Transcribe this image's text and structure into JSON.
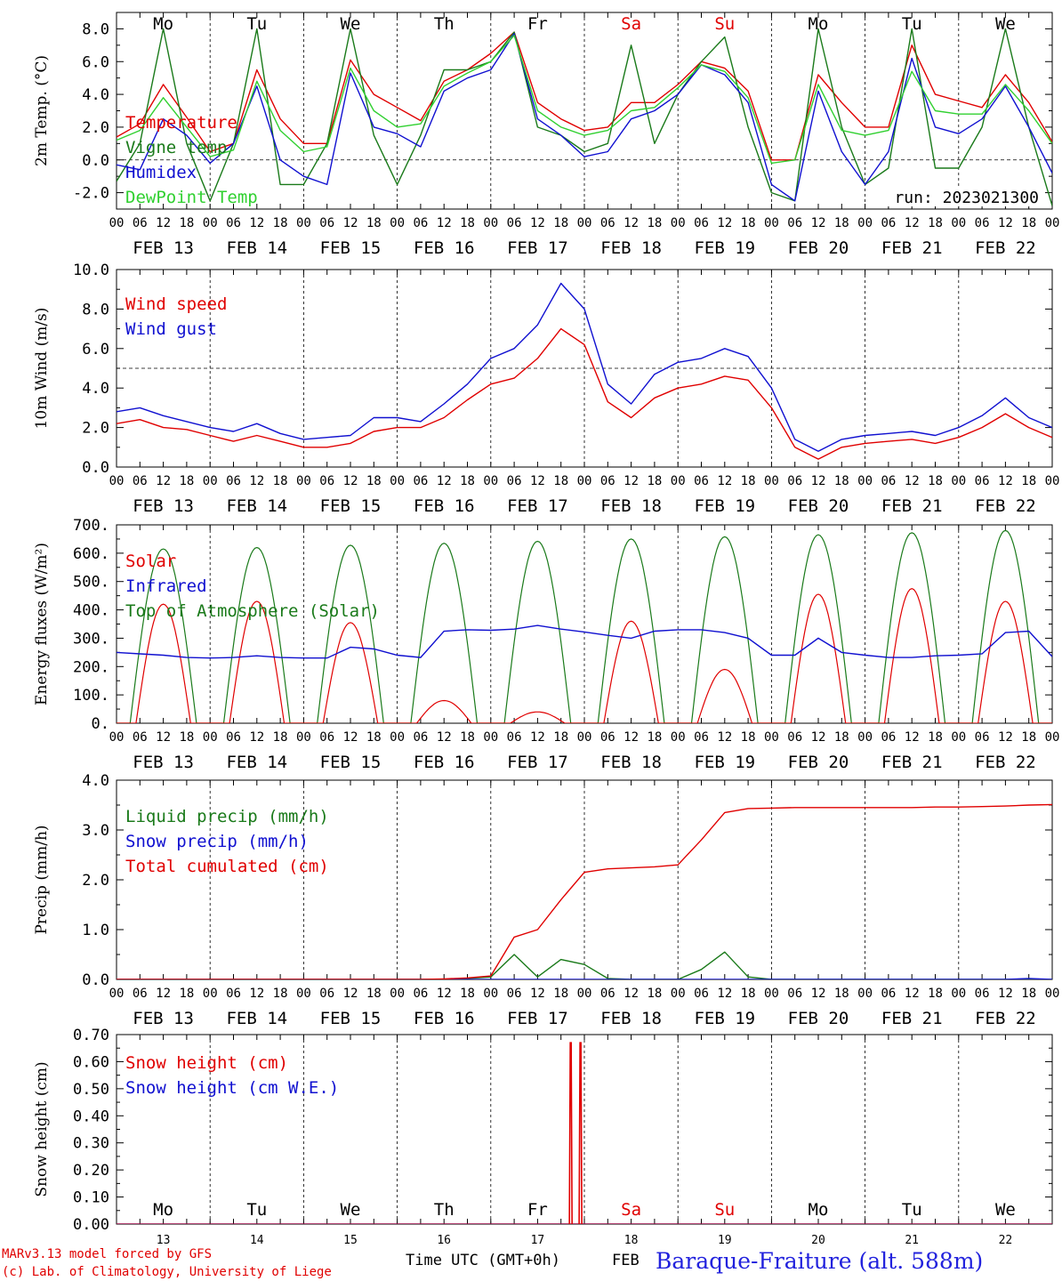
{
  "footer": {
    "model_line": "MARv3.13 model forced by GFS",
    "copyright_line": "(c) Lab. of Climatology, University of Liege",
    "time_label": "Time UTC (GMT+0h)",
    "month_label": "FEB",
    "station_title": "Baraque-Fraiture (alt. 588m)"
  },
  "colors": {
    "red": "#e00000",
    "green": "#1a7a1a",
    "blue": "#1010d0",
    "lightgreen": "#30d030",
    "weekend": "#e00000",
    "text": "#000000",
    "title": "#2222dd"
  },
  "chart_data": [
    {
      "type": "line",
      "ylabel": "2m Temp. (°C)",
      "ylim": [
        -3,
        9
      ],
      "yticks": [
        "8.0",
        "6.0",
        "4.0",
        "2.0",
        "0.0",
        "-2.0"
      ],
      "ytick_values": [
        8,
        6,
        4,
        2,
        0,
        -2
      ],
      "reference_line": 0,
      "annotation": "run: 2023021300",
      "day_labels": [
        "Mo",
        "Tu",
        "We",
        "Th",
        "Fr",
        "Sa",
        "Su",
        "Mo",
        "Tu",
        "We"
      ],
      "weekend_days": [
        5,
        6
      ],
      "x_hours": [
        0,
        6,
        12,
        18,
        24,
        30,
        36,
        42,
        48,
        54,
        60,
        66,
        72,
        78,
        84,
        90,
        96,
        102,
        108,
        114,
        120,
        126,
        132,
        138,
        144,
        150,
        156,
        162,
        168,
        174,
        180,
        186,
        192,
        198,
        204,
        210,
        216,
        222,
        228,
        234,
        240
      ],
      "series": [
        {
          "name": "Temperature",
          "color": "#e00000",
          "values": [
            1.4,
            2.2,
            4.6,
            2.6,
            0.5,
            1.0,
            5.5,
            2.5,
            1.0,
            1.0,
            6.1,
            4.0,
            3.2,
            2.4,
            4.8,
            5.5,
            6.5,
            7.8,
            3.5,
            2.5,
            1.8,
            2.0,
            3.5,
            3.5,
            4.6,
            6.0,
            5.6,
            4.2,
            0.0,
            0.0,
            5.2,
            3.5,
            2.0,
            2.0,
            7.0,
            4.0,
            3.6,
            3.2,
            5.2,
            3.5,
            1.1
          ]
        },
        {
          "name": "Vigne temp",
          "color": "#1a7a1a",
          "values": [
            -1.3,
            1.0,
            8.0,
            1.0,
            -2.5,
            1.0,
            8.0,
            -1.5,
            -1.5,
            1.0,
            8.0,
            1.5,
            -1.5,
            1.5,
            5.5,
            5.5,
            6.0,
            7.8,
            2.0,
            1.5,
            0.5,
            1.0,
            7.0,
            1.0,
            4.0,
            6.0,
            7.5,
            2.0,
            -2.0,
            -2.5,
            8.0,
            2.0,
            -1.5,
            -0.5,
            8.0,
            -0.5,
            -0.5,
            2.0,
            8.0,
            2.0,
            -2.8
          ]
        },
        {
          "name": "Humidex",
          "color": "#1010d0",
          "values": [
            -0.3,
            -0.6,
            2.5,
            1.5,
            -0.2,
            1.0,
            4.5,
            0.0,
            -1.0,
            -1.5,
            5.3,
            2.0,
            1.6,
            0.8,
            4.2,
            5.0,
            5.5,
            7.7,
            2.5,
            1.5,
            0.2,
            0.5,
            2.5,
            3.0,
            4.0,
            5.8,
            5.2,
            3.5,
            -1.5,
            -2.5,
            4.2,
            0.5,
            -1.5,
            0.5,
            6.2,
            2.0,
            1.6,
            2.5,
            4.5,
            2.0,
            -0.8
          ]
        },
        {
          "name": "DewPoint Temp",
          "color": "#30d030",
          "values": [
            1.2,
            1.8,
            3.8,
            2.0,
            0.2,
            0.6,
            4.8,
            1.8,
            0.5,
            0.8,
            5.6,
            3.0,
            2.0,
            2.2,
            4.5,
            5.3,
            6.0,
            7.6,
            3.0,
            2.0,
            1.5,
            1.8,
            3.0,
            3.2,
            4.4,
            5.8,
            5.4,
            3.8,
            -0.2,
            0.0,
            4.6,
            1.8,
            1.5,
            1.8,
            5.4,
            3.0,
            2.8,
            2.8,
            4.6,
            3.0,
            1.0
          ]
        }
      ]
    },
    {
      "type": "line",
      "ylabel": "10m Wind (m/s)",
      "ylim": [
        0,
        10
      ],
      "yticks": [
        "10.0",
        "8.0",
        "6.0",
        "4.0",
        "2.0",
        "0.0"
      ],
      "ytick_values": [
        10,
        8,
        6,
        4,
        2,
        0
      ],
      "reference_line": 5,
      "x_hours": [
        0,
        6,
        12,
        18,
        24,
        30,
        36,
        42,
        48,
        54,
        60,
        66,
        72,
        78,
        84,
        90,
        96,
        102,
        108,
        114,
        120,
        126,
        132,
        138,
        144,
        150,
        156,
        162,
        168,
        174,
        180,
        186,
        192,
        198,
        204,
        210,
        216,
        222,
        228,
        234,
        240
      ],
      "series": [
        {
          "name": "Wind speed",
          "color": "#e00000",
          "values": [
            2.2,
            2.4,
            2.0,
            1.9,
            1.6,
            1.3,
            1.6,
            1.3,
            1.0,
            1.0,
            1.2,
            1.8,
            2.0,
            2.0,
            2.5,
            3.4,
            4.2,
            4.5,
            5.5,
            7.0,
            6.2,
            3.3,
            2.5,
            3.5,
            4.0,
            4.2,
            4.6,
            4.4,
            3.0,
            1.0,
            0.4,
            1.0,
            1.2,
            1.3,
            1.4,
            1.2,
            1.5,
            2.0,
            2.7,
            2.0,
            1.5
          ]
        },
        {
          "name": "Wind gust",
          "color": "#1010d0",
          "values": [
            2.8,
            3.0,
            2.6,
            2.3,
            2.0,
            1.8,
            2.2,
            1.7,
            1.4,
            1.5,
            1.6,
            2.5,
            2.5,
            2.3,
            3.2,
            4.2,
            5.5,
            6.0,
            7.2,
            9.3,
            8.0,
            4.2,
            3.2,
            4.7,
            5.3,
            5.5,
            6.0,
            5.6,
            4.0,
            1.4,
            0.8,
            1.4,
            1.6,
            1.7,
            1.8,
            1.6,
            2.0,
            2.6,
            3.5,
            2.5,
            2.0
          ]
        }
      ]
    },
    {
      "type": "line",
      "ylabel": "Energy fluxes (W/m²)",
      "ylim": [
        0,
        700
      ],
      "yticks": [
        "700.",
        "600.",
        "500.",
        "400.",
        "300.",
        "200.",
        "100.",
        "0."
      ],
      "ytick_values": [
        700,
        600,
        500,
        400,
        300,
        200,
        100,
        0
      ],
      "x_hours": [
        0,
        6,
        12,
        18,
        24,
        30,
        36,
        42,
        48,
        54,
        60,
        66,
        72,
        78,
        84,
        90,
        96,
        102,
        108,
        114,
        120,
        126,
        132,
        138,
        144,
        150,
        156,
        162,
        168,
        174,
        180,
        186,
        192,
        198,
        204,
        210,
        216,
        222,
        228,
        234,
        240
      ],
      "series": [
        {
          "name": "Solar",
          "color": "#e00000",
          "day_peaks": [
            420,
            430,
            355,
            80,
            40,
            360,
            190,
            455,
            475,
            430
          ]
        },
        {
          "name": "Infrared",
          "color": "#1010d0",
          "values": [
            250,
            245,
            240,
            232,
            230,
            232,
            238,
            232,
            230,
            230,
            268,
            262,
            240,
            232,
            325,
            330,
            328,
            332,
            345,
            332,
            322,
            310,
            300,
            325,
            330,
            330,
            320,
            300,
            240,
            240,
            300,
            250,
            240,
            232,
            232,
            238,
            240,
            245,
            320,
            325,
            235
          ]
        },
        {
          "name": "Top of Atmosphere (Solar)",
          "color": "#1a7a1a",
          "day_peaks": [
            615,
            620,
            628,
            635,
            642,
            650,
            658,
            665,
            672,
            680
          ]
        }
      ]
    },
    {
      "type": "line",
      "ylabel": "Precip (mm/h)",
      "ylim": [
        0,
        4
      ],
      "yticks": [
        "4.0",
        "3.0",
        "2.0",
        "1.0",
        "0.0"
      ],
      "ytick_values": [
        4,
        3,
        2,
        1,
        0
      ],
      "x_hours": [
        0,
        6,
        12,
        18,
        24,
        30,
        36,
        42,
        48,
        54,
        60,
        66,
        72,
        78,
        84,
        90,
        96,
        102,
        108,
        114,
        120,
        126,
        132,
        138,
        144,
        150,
        156,
        162,
        168,
        174,
        180,
        186,
        192,
        198,
        204,
        210,
        216,
        222,
        228,
        234,
        240
      ],
      "series": [
        {
          "name": "Liquid precip (mm/h)",
          "color": "#1a7a1a",
          "values": [
            0,
            0,
            0,
            0,
            0,
            0,
            0,
            0,
            0,
            0,
            0,
            0,
            0,
            0,
            0,
            0.02,
            0.05,
            0.5,
            0.05,
            0.4,
            0.3,
            0.02,
            0,
            0,
            0,
            0.2,
            0.55,
            0.05,
            0,
            0,
            0,
            0,
            0,
            0,
            0,
            0,
            0,
            0,
            0,
            0,
            0
          ]
        },
        {
          "name": "Snow precip (mm/h)",
          "color": "#1010d0",
          "values": [
            0,
            0,
            0,
            0,
            0,
            0,
            0,
            0,
            0,
            0,
            0,
            0,
            0,
            0,
            0,
            0,
            0,
            0,
            0,
            0,
            0,
            0,
            0,
            0,
            0,
            0,
            0,
            0,
            0,
            0,
            0,
            0,
            0,
            0,
            0,
            0,
            0,
            0,
            0,
            0.02,
            0
          ]
        },
        {
          "name": "Total cumulated (cm)",
          "color": "#e00000",
          "values": [
            0,
            0,
            0,
            0,
            0,
            0,
            0,
            0,
            0,
            0,
            0,
            0,
            0,
            0,
            0.01,
            0.03,
            0.07,
            0.85,
            1.0,
            1.6,
            2.15,
            2.22,
            2.24,
            2.26,
            2.3,
            2.8,
            3.35,
            3.43,
            3.44,
            3.45,
            3.45,
            3.45,
            3.45,
            3.45,
            3.45,
            3.46,
            3.46,
            3.47,
            3.48,
            3.5,
            3.51
          ]
        }
      ]
    },
    {
      "type": "line",
      "ylabel": "Snow height (cm)",
      "ylim": [
        0,
        0.7
      ],
      "yticks": [
        "0.70",
        "0.60",
        "0.50",
        "0.40",
        "0.30",
        "0.20",
        "0.10",
        "0.00"
      ],
      "ytick_values": [
        0.7,
        0.6,
        0.5,
        0.4,
        0.3,
        0.2,
        0.1,
        0
      ],
      "day_labels": [
        "Mo",
        "Tu",
        "We",
        "Th",
        "Fr",
        "Sa",
        "Su",
        "Mo",
        "Tu",
        "We"
      ],
      "weekend_days": [
        5,
        6
      ],
      "day_numbers": [
        "13",
        "14",
        "15",
        "16",
        "17",
        "18",
        "19",
        "20",
        "21",
        "22"
      ],
      "series": [
        {
          "name": "Snow height (cm)",
          "color": "#e00000",
          "spikes": [
            {
              "hour": 116.5,
              "value": 0.67
            },
            {
              "hour": 119.0,
              "value": 0.67
            }
          ]
        },
        {
          "name": "Snow height (cm W.E.)",
          "color": "#1010d0",
          "values": [
            0,
            0
          ]
        }
      ]
    }
  ],
  "x_axis": {
    "hour_ticks": [
      "00",
      "06",
      "12",
      "18"
    ],
    "end_tick": "00",
    "date_labels": [
      "FEB 13",
      "FEB 14",
      "FEB 15",
      "FEB 16",
      "FEB 17",
      "FEB 18",
      "FEB 19",
      "FEB 20",
      "FEB 21",
      "FEB 22"
    ]
  }
}
